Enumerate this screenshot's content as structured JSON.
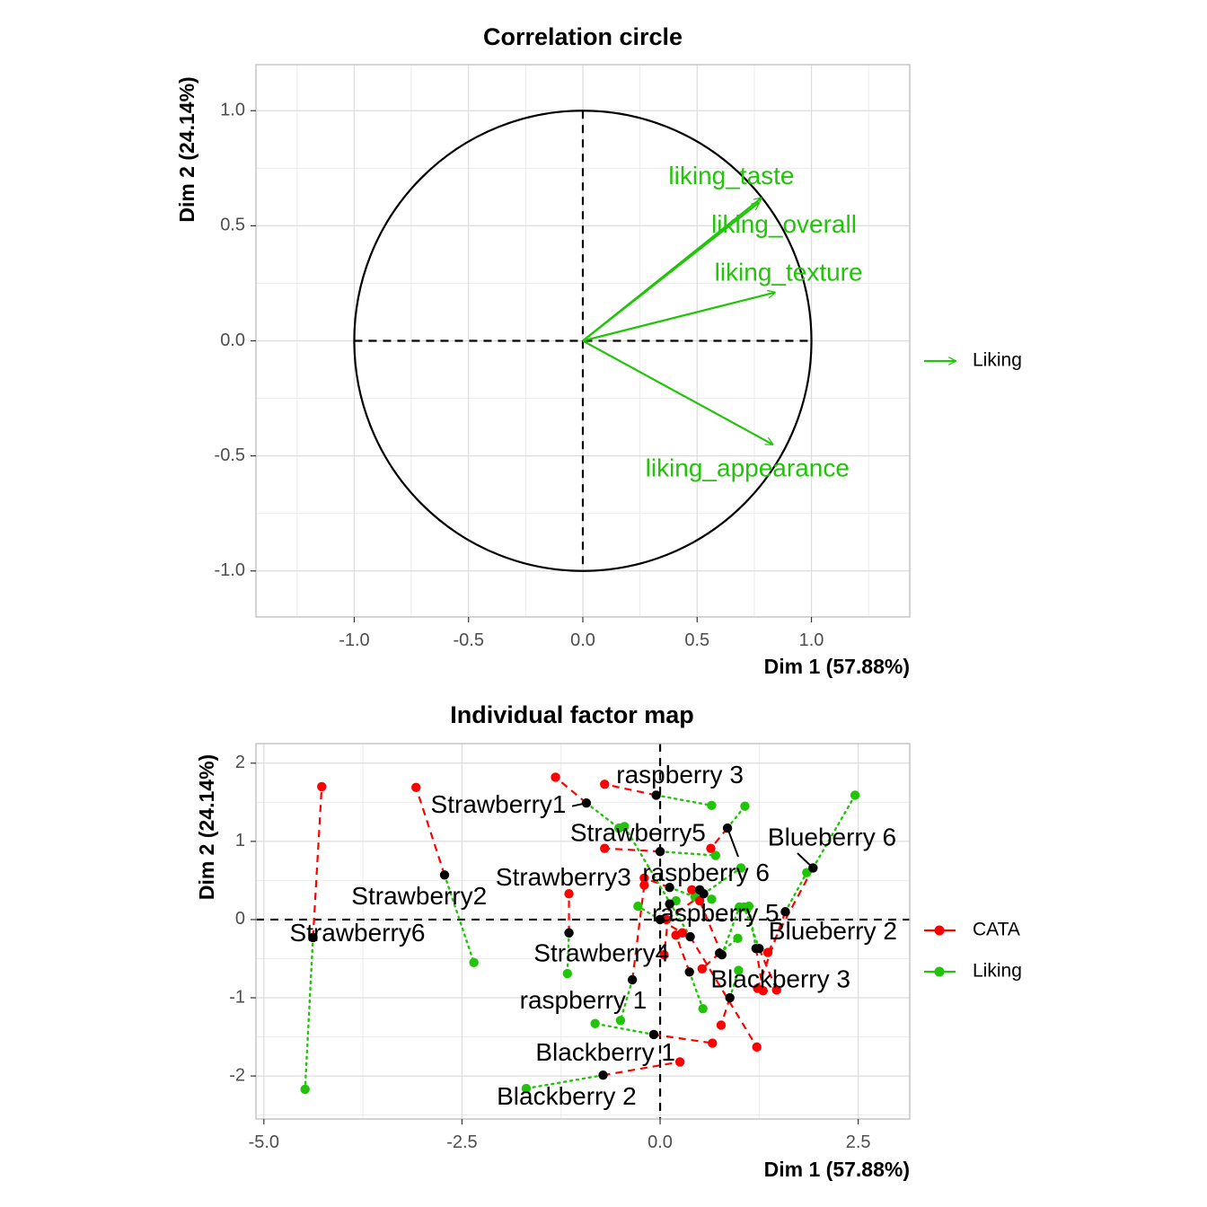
{
  "colors": {
    "cata": "#ff0000",
    "liking": "#22c40a",
    "black": "#000000"
  },
  "chart_data": [
    {
      "type": "correlation_circle",
      "title": "Correlation circle",
      "xlabel": "Dim 1 (57.88%)",
      "ylabel": "Dim 2 (24.14%)",
      "xlim": [
        -1.43,
        1.43
      ],
      "ylim": [
        -1.2,
        1.2
      ],
      "xticks": [
        -1.0,
        -0.5,
        0.0,
        0.5,
        1.0
      ],
      "xtick_labels": [
        "-1.0",
        "-0.5",
        "0.0",
        "0.5",
        "1.0"
      ],
      "yticks": [
        -1.0,
        -0.5,
        0.0,
        0.5,
        1.0
      ],
      "ytick_labels": [
        "-1.0",
        "-0.5",
        "0.0",
        "0.5",
        "1.0"
      ],
      "grid": true,
      "legend": {
        "position": "right",
        "entries": [
          {
            "name": "Liking",
            "color": "#22c40a"
          }
        ]
      },
      "arrows": [
        {
          "label": "liking_taste",
          "x": 0.78,
          "y": 0.62,
          "lx": 0.65,
          "ly": 0.71
        },
        {
          "label": "liking_overall",
          "x": 0.77,
          "y": 0.6,
          "lx": 0.88,
          "ly": 0.5
        },
        {
          "label": "liking_texture",
          "x": 0.84,
          "y": 0.21,
          "lx": 0.9,
          "ly": 0.29
        },
        {
          "label": "liking_appearance",
          "x": 0.83,
          "y": -0.45,
          "lx": 0.72,
          "ly": -0.56
        }
      ]
    },
    {
      "type": "scatter",
      "title": "Individual factor map",
      "xlabel": "Dim 1 (57.88%)",
      "ylabel": "Dim 2 (24.14%)",
      "xlim": [
        -5.1,
        3.15
      ],
      "ylim": [
        -2.55,
        2.25
      ],
      "xticks": [
        -5.0,
        -2.5,
        0.0,
        2.5
      ],
      "xtick_labels": [
        "-5.0",
        "-2.5",
        "0.0",
        "2.5"
      ],
      "yticks": [
        -2,
        -1,
        0,
        1,
        2
      ],
      "ytick_labels": [
        "-2",
        "-1",
        "0",
        "1",
        "2"
      ],
      "grid": true,
      "legend": {
        "position": "right",
        "entries": [
          {
            "name": "CATA",
            "color": "#ff0000"
          },
          {
            "name": "Liking",
            "color": "#22c40a"
          }
        ]
      },
      "individuals": [
        {
          "label": "Strawberry6",
          "x": -4.38,
          "y": -0.23,
          "cata": [
            -4.27,
            1.7
          ],
          "liking": [
            -4.48,
            -2.17
          ],
          "lx": -3.82,
          "ly": -0.19
        },
        {
          "label": "Strawberry2",
          "x": -2.72,
          "y": 0.57,
          "cata": [
            -3.08,
            1.69
          ],
          "liking": [
            -2.35,
            -0.55
          ],
          "lx": -3.04,
          "ly": 0.28
        },
        {
          "label": "Strawberry1",
          "x": -0.93,
          "y": 1.49,
          "cata": [
            -1.32,
            1.82
          ],
          "liking": [
            -0.52,
            1.17
          ],
          "lx": -2.04,
          "ly": 1.45
        },
        {
          "label": "raspberry 3",
          "x": -0.05,
          "y": 1.59,
          "cata": [
            -0.7,
            1.73
          ],
          "liking": [
            0.65,
            1.46
          ],
          "lx": 0.25,
          "ly": 1.83
        },
        {
          "label": "Strawberry5",
          "x": 0.0,
          "y": 0.87,
          "cata": [
            -0.7,
            0.91
          ],
          "liking": [
            0.7,
            0.82
          ],
          "lx": -0.28,
          "ly": 1.09
        },
        {
          "label": "Blueberry 6",
          "x": 1.93,
          "y": 0.66,
          "cata": [
            1.36,
            -0.42
          ],
          "liking": [
            2.46,
            1.59
          ],
          "lx": 2.17,
          "ly": 1.03
        },
        {
          "label": "raspberry 6",
          "x": 0.85,
          "y": 1.17,
          "cata": [
            0.64,
            0.91
          ],
          "liking": [
            1.07,
            1.45
          ],
          "lx": 0.58,
          "ly": 0.58
        },
        {
          "label": "Strawberry3",
          "x": 0.12,
          "y": 0.41,
          "cata": [
            -0.2,
            0.53
          ],
          "liking": [
            0.44,
            0.29
          ],
          "lx": -1.22,
          "ly": 0.52
        },
        {
          "label": "raspberry 5",
          "x": 1.58,
          "y": 0.1,
          "cata": [
            1.23,
            -0.88
          ],
          "liking": [
            1.85,
            0.6
          ],
          "lx": 0.7,
          "ly": 0.06
        },
        {
          "label": "Blueberry 2",
          "x": 1.25,
          "y": -0.37,
          "cata": [
            1.47,
            -0.9
          ],
          "liking": [
            1.06,
            0.16
          ],
          "lx": 2.18,
          "ly": -0.17
        },
        {
          "label": "Strawberry4",
          "x": -1.15,
          "y": -0.17,
          "cata": [
            -1.15,
            0.33
          ],
          "liking": [
            -1.17,
            -0.69
          ],
          "lx": -0.74,
          "ly": -0.45
        },
        {
          "label": "Blackberry 3",
          "x": 0.78,
          "y": -0.45,
          "cata": [
            0.5,
            0.24
          ],
          "liking": [
            1.0,
            0.16
          ],
          "lx": 1.52,
          "ly": -0.78
        },
        {
          "label": "raspberry 1",
          "x": -0.35,
          "y": -0.77,
          "cata": [
            -0.2,
            0.44
          ],
          "liking": [
            -0.5,
            -1.29
          ],
          "lx": -0.97,
          "ly": -1.05
        },
        {
          "label": "Blackberry 1",
          "x": -0.08,
          "y": -1.47,
          "cata": [
            0.66,
            -1.58
          ],
          "liking": [
            -0.82,
            -1.33
          ],
          "lx": -0.69,
          "ly": -1.72
        },
        {
          "label": "Blackberry 2",
          "x": -0.72,
          "y": -1.99,
          "cata": [
            0.25,
            -1.82
          ],
          "liking": [
            -1.69,
            -2.16
          ],
          "lx": -1.18,
          "ly": -2.28
        },
        {
          "label": "",
          "x": 0.38,
          "y": -0.22,
          "cata": [
            1.22,
            -1.63
          ],
          "liking": [
            -0.45,
            1.19
          ],
          "lx": 0,
          "ly": 0
        },
        {
          "label": "",
          "x": 0.55,
          "y": 0.33,
          "cata": [
            0.08,
            0.0
          ],
          "liking": [
            1.02,
            0.66
          ],
          "lx": 0,
          "ly": 0
        },
        {
          "label": "",
          "x": 0.88,
          "y": -1.0,
          "cata": [
            0.77,
            -1.35
          ],
          "liking": [
            0.99,
            -0.65
          ],
          "lx": 0,
          "ly": 0
        },
        {
          "label": "",
          "x": 1.21,
          "y": -0.37,
          "cata": [
            1.3,
            -0.91
          ],
          "liking": [
            1.12,
            0.17
          ],
          "lx": 0,
          "ly": 0
        },
        {
          "label": "",
          "x": 0.37,
          "y": -0.67,
          "cata": [
            0.2,
            -0.2
          ],
          "liking": [
            0.54,
            -1.14
          ],
          "lx": 0,
          "ly": 0
        },
        {
          "label": "",
          "x": 0.0,
          "y": 0.0,
          "cata": [
            0.28,
            -0.17
          ],
          "liking": [
            -0.28,
            0.17
          ],
          "lx": 0,
          "ly": 0
        },
        {
          "label": "",
          "x": 0.75,
          "y": -0.43,
          "cata": [
            0.53,
            -0.63
          ],
          "liking": [
            0.98,
            -0.24
          ],
          "lx": 0,
          "ly": 0
        },
        {
          "label": "",
          "x": 0.5,
          "y": 0.38,
          "cata": [
            0.4,
            0.38
          ],
          "liking": [
            0.65,
            0.26
          ],
          "lx": 0,
          "ly": 0
        },
        {
          "label": "",
          "x": 0.12,
          "y": 0.2,
          "cata": [
            0.05,
            -0.45
          ],
          "liking": [
            0.2,
            0.24
          ],
          "lx": 0,
          "ly": 0
        }
      ]
    }
  ]
}
